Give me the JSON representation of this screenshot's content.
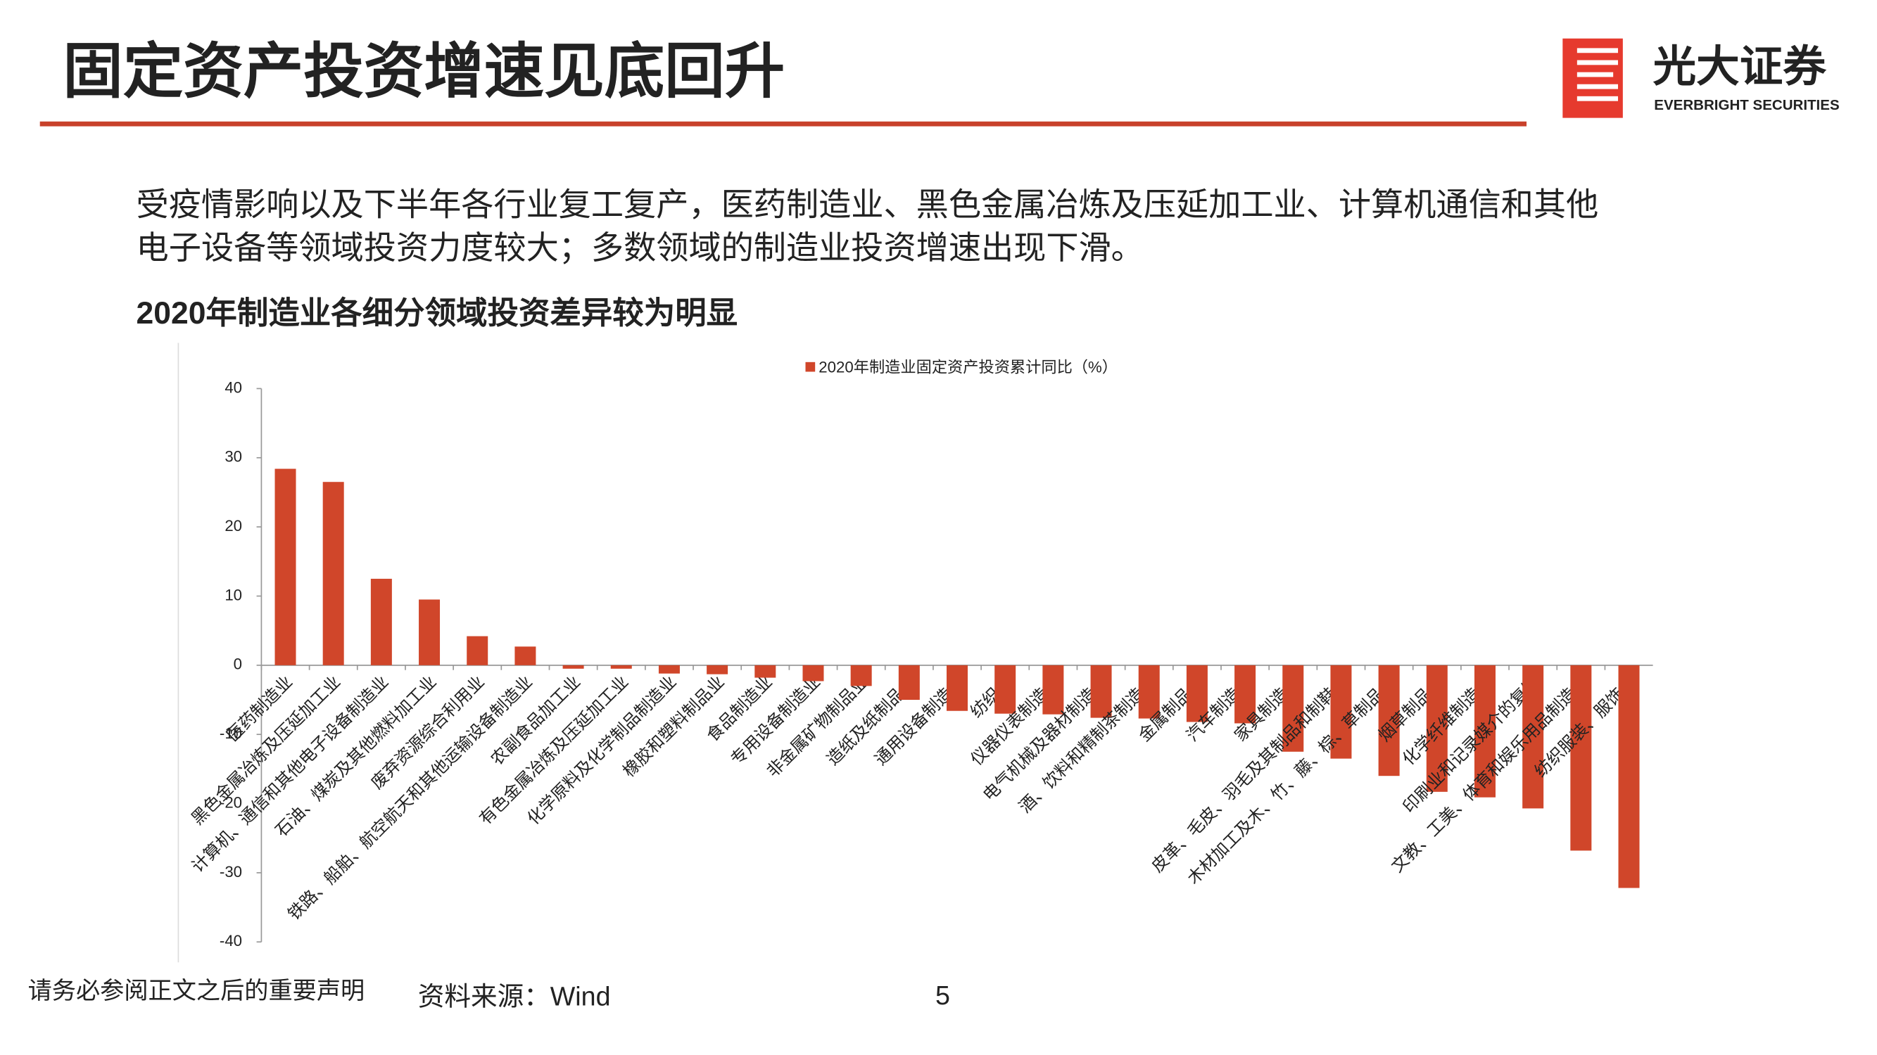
{
  "header": {
    "title": "固定资产投资增速见底回升",
    "logo_cn": "光大证券",
    "logo_en": "EVERBRIGHT SECURITIES"
  },
  "body": {
    "lines": [
      "受疫情影响以及下半年各行业复工复产，医药制造业、黑色金属冶炼及压延加工业、计算机通信和其他",
      "电子设备等领域投资力度较大；多数领域的制造业投资增速出现下滑。"
    ],
    "subtitle": "2020年制造业各细分领域投资差异较为明显"
  },
  "footer": {
    "disclaimer": "请务必参阅正文之后的重要声明",
    "source": "资料来源：Wind",
    "page": "5"
  },
  "chart_data": {
    "type": "bar",
    "categories": [
      "医药制造业",
      "黑色金属冶炼及压延加工业",
      "计算机、通信和其他电子设备制造业",
      "石油、煤炭及其他燃料加工业",
      "废弃资源综合利用业",
      "铁路、船舶、航空航天和其他运输设备制造业",
      "农副食品加工业",
      "有色金属冶炼及压延加工业",
      "化学原料及化学制品制造业",
      "橡胶和塑料制品业",
      "食品制造业",
      "专用设备制造业",
      "非金属矿物制品业",
      "造纸及纸制品业",
      "通用设备制造业",
      "纺织业",
      "仪器仪表制造业",
      "电气机械及器材制造业",
      "酒、饮料和精制茶制造业",
      "金属制品业",
      "汽车制造业",
      "家具制造业",
      "皮革、毛皮、羽毛及其制品和制鞋业",
      "木材加工及木、竹、藤、棕、草制品业",
      "烟草制品业",
      "化学纤维制造业",
      "印刷业和记录媒介的复制",
      "文教、工美、体育和娱乐用品制造业",
      "纺织服装、服饰业"
    ],
    "series": [
      {
        "name": "2020年制造业固定资产投资累计同比（%）",
        "color": "#d0462a",
        "values": [
          28.4,
          26.5,
          12.5,
          9.5,
          4.2,
          2.7,
          -0.5,
          -0.5,
          -1.2,
          -1.3,
          -1.8,
          -2.3,
          -3.0,
          -5.0,
          -6.6,
          -7.0,
          -7.1,
          -7.6,
          -7.7,
          -8.2,
          -8.4,
          -12.5,
          -13.5,
          -16.0,
          -18.3,
          -19.1,
          -20.7,
          -26.8,
          -32.2
        ]
      }
    ],
    "ylim": [
      -40,
      40
    ],
    "yticks": [
      -40,
      -30,
      -20,
      -10,
      0,
      10,
      20,
      30,
      40
    ],
    "legend": "top"
  }
}
